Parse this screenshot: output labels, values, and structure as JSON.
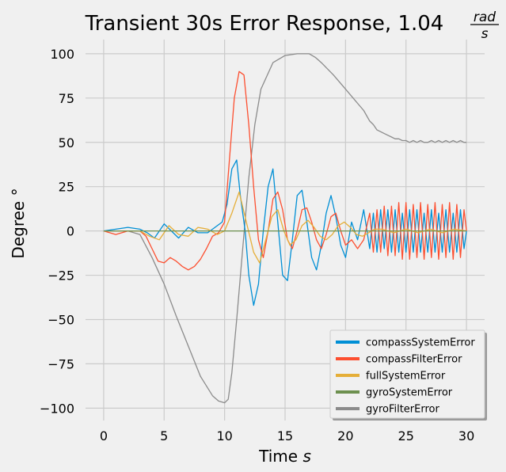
{
  "chart_data": {
    "type": "line",
    "title_text": "Transient 30s Error Response, 1.04 ",
    "title_frac_num": "rad",
    "title_frac_den": "s",
    "xlabel_text": "Time ",
    "xlabel_italic": "s",
    "ylabel": "Degree °",
    "xlim": [
      -1.5,
      31.5
    ],
    "ylim": [
      -107,
      108
    ],
    "xticks": [
      0,
      5,
      10,
      15,
      20,
      25,
      30
    ],
    "yticks": [
      -100,
      -75,
      -50,
      -25,
      0,
      25,
      50,
      75,
      100
    ],
    "grid": true,
    "legend_position": "lower right",
    "series": [
      {
        "name": "compassSystemError",
        "color": "#008fd5",
        "x": [
          0,
          1,
          2,
          3,
          3.6,
          4.2,
          5,
          5.6,
          6.2,
          7,
          7.8,
          8.6,
          9.4,
          9.8,
          10.2,
          10.6,
          11,
          11.3,
          11.7,
          12,
          12.4,
          12.8,
          13.2,
          13.6,
          14,
          14.4,
          14.8,
          15.2,
          15.6,
          16,
          16.4,
          16.8,
          17.2,
          17.6,
          18,
          18.4,
          18.8,
          19.2,
          19.6,
          20,
          20.5,
          21,
          21.5,
          22,
          22.3,
          22.6,
          22.9,
          23.2,
          23.5,
          23.8,
          24.1,
          24.4,
          24.7,
          25,
          25.3,
          25.6,
          25.9,
          26.2,
          26.5,
          26.8,
          27.1,
          27.4,
          27.7,
          28,
          28.3,
          28.6,
          28.9,
          29.2,
          29.5,
          29.8,
          30
        ],
        "y": [
          0,
          1,
          2,
          1,
          -1,
          -4,
          4,
          0,
          -4,
          2,
          -1,
          -1,
          3,
          5,
          15,
          35,
          40,
          20,
          0,
          -25,
          -42,
          -30,
          0,
          25,
          35,
          5,
          -25,
          -28,
          -5,
          20,
          23,
          5,
          -15,
          -22,
          -8,
          10,
          20,
          8,
          -8,
          -15,
          5,
          -5,
          12,
          -10,
          10,
          -12,
          12,
          -10,
          12,
          -12,
          12,
          -12,
          10,
          -12,
          12,
          -12,
          12,
          -12,
          10,
          -12,
          12,
          -12,
          10,
          -12,
          12,
          -12,
          10,
          -12,
          12,
          -10,
          0
        ]
      },
      {
        "name": "compassFilterError",
        "color": "#fc4f30",
        "x": [
          0,
          1,
          2,
          3,
          3.5,
          4,
          4.5,
          5,
          5.5,
          6,
          6.5,
          7,
          7.5,
          8,
          8.5,
          9,
          9.5,
          10,
          10.4,
          10.8,
          11.2,
          11.6,
          12,
          12.4,
          12.8,
          13.2,
          13.6,
          14,
          14.4,
          14.8,
          15.2,
          15.6,
          16,
          16.4,
          16.8,
          17.2,
          17.6,
          18,
          18.4,
          18.8,
          19.2,
          19.6,
          20,
          20.5,
          21,
          21.5,
          22,
          22.3,
          22.6,
          22.9,
          23.2,
          23.5,
          23.8,
          24.1,
          24.4,
          24.7,
          25,
          25.3,
          25.6,
          25.9,
          26.2,
          26.5,
          26.8,
          27.1,
          27.4,
          27.7,
          28,
          28.3,
          28.6,
          28.9,
          29.2,
          29.5,
          29.8,
          30
        ],
        "y": [
          0,
          -2,
          0,
          0,
          -3,
          -10,
          -17,
          -18,
          -15,
          -17,
          -20,
          -22,
          -20,
          -16,
          -10,
          -3,
          -1,
          5,
          40,
          75,
          90,
          88,
          60,
          25,
          -5,
          -15,
          0,
          18,
          22,
          12,
          -5,
          -10,
          0,
          12,
          13,
          5,
          -5,
          -10,
          -2,
          8,
          10,
          0,
          -8,
          -5,
          -10,
          -5,
          10,
          -12,
          12,
          -12,
          14,
          -14,
          14,
          -14,
          16,
          -16,
          16,
          -16,
          15,
          -15,
          16,
          -16,
          15,
          -15,
          16,
          -16,
          15,
          -15,
          16,
          -16,
          15,
          -15,
          12,
          0
        ]
      },
      {
        "name": "fullSystemError",
        "color": "#e5ae38",
        "x": [
          0,
          2,
          3,
          3.8,
          4.6,
          5.4,
          6.2,
          7,
          7.8,
          8.6,
          9.4,
          10,
          10.6,
          11.2,
          11.8,
          12.4,
          12.9,
          13.4,
          13.9,
          14.4,
          14.9,
          15.4,
          15.9,
          16.4,
          16.9,
          17.4,
          17.9,
          18.4,
          18.9,
          19.4,
          19.9,
          20.4,
          20.9,
          21.4,
          21.9,
          22.4,
          23,
          24,
          25,
          26,
          27,
          28,
          29,
          30
        ],
        "y": [
          0,
          0,
          0,
          -3,
          -5,
          3,
          -2,
          -3,
          2,
          1,
          -2,
          0,
          10,
          22,
          5,
          -12,
          -18,
          -5,
          8,
          12,
          0,
          -8,
          -5,
          3,
          6,
          2,
          -3,
          -5,
          -2,
          3,
          5,
          2,
          -2,
          -3,
          -1,
          1,
          1,
          -1,
          1,
          -1,
          1,
          -1,
          1,
          0
        ]
      },
      {
        "name": "gyroSystemError",
        "color": "#6d904f",
        "x": [
          0,
          30
        ],
        "y": [
          0,
          0
        ]
      },
      {
        "name": "gyroFilterError",
        "color": "#8b8b8b",
        "x": [
          0,
          1,
          2,
          3,
          4,
          5,
          6,
          7,
          8,
          9,
          9.5,
          10,
          10.3,
          10.6,
          11,
          11.5,
          12,
          12.5,
          13,
          14,
          15,
          16,
          17,
          17.5,
          18,
          19,
          20,
          21,
          21.5,
          22,
          22.3,
          22.6,
          22.9,
          23.2,
          23.5,
          23.8,
          24.1,
          24.4,
          24.7,
          25,
          25.3,
          25.6,
          25.9,
          26.2,
          26.5,
          26.8,
          27.1,
          27.4,
          27.7,
          28,
          28.3,
          28.6,
          28.9,
          29.2,
          29.5,
          29.8,
          30
        ],
        "y": [
          0,
          0,
          0,
          -2,
          -15,
          -30,
          -48,
          -65,
          -82,
          -93,
          -96,
          -97,
          -95,
          -80,
          -50,
          -10,
          30,
          60,
          80,
          95,
          99,
          100,
          100,
          98,
          95,
          88,
          80,
          72,
          68,
          62,
          60,
          57,
          56,
          55,
          54,
          53,
          52,
          52,
          51,
          51,
          50,
          51,
          50,
          51,
          50,
          50,
          51,
          50,
          51,
          50,
          51,
          50,
          51,
          50,
          51,
          50,
          50
        ]
      }
    ]
  }
}
